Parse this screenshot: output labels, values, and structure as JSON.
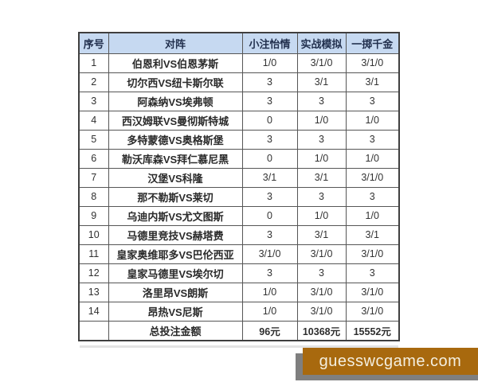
{
  "table": {
    "headers": [
      "序号",
      "对阵",
      "小注怡情",
      "实战模拟",
      "一掷千金"
    ],
    "rows": [
      [
        "1",
        "伯恩利VS伯恩茅斯",
        "1/0",
        "3/1/0",
        "3/1/0"
      ],
      [
        "2",
        "切尔西VS纽卡斯尔联",
        "3",
        "3/1",
        "3/1"
      ],
      [
        "3",
        "阿森纳VS埃弗顿",
        "3",
        "3",
        "3"
      ],
      [
        "4",
        "西汉姆联VS曼彻斯特城",
        "0",
        "1/0",
        "1/0"
      ],
      [
        "5",
        "多特蒙德VS奥格斯堡",
        "3",
        "3",
        "3"
      ],
      [
        "6",
        "勒沃库森VS拜仁慕尼黑",
        "0",
        "1/0",
        "1/0"
      ],
      [
        "7",
        "汉堡VS科隆",
        "3/1",
        "3/1",
        "3/1/0"
      ],
      [
        "8",
        "那不勒斯VS莱切",
        "3",
        "3",
        "3"
      ],
      [
        "9",
        "乌迪内斯VS尤文图斯",
        "0",
        "1/0",
        "1/0"
      ],
      [
        "10",
        "马德里竞技VS赫塔费",
        "3",
        "3/1",
        "3/1"
      ],
      [
        "11",
        "皇家奥维耶多VS巴伦西亚",
        "3/1/0",
        "3/1/0",
        "3/1/0"
      ],
      [
        "12",
        "皇家马德里VS埃尔切",
        "3",
        "3",
        "3"
      ],
      [
        "13",
        "洛里昂VS朗斯",
        "1/0",
        "3/1/0",
        "3/1/0"
      ],
      [
        "14",
        "昂热VS尼斯",
        "1/0",
        "3/1/0",
        "3/1/0"
      ]
    ],
    "total_row": [
      "",
      "总投注金额",
      "96元",
      "10368元",
      "15552元"
    ]
  },
  "watermark": {
    "text": "guesswcgame.com",
    "box_color": "#a8690e",
    "shadow_color": "#7f7f7f",
    "text_color": "#f4efe0"
  },
  "colors": {
    "header_bg": "#c6d9f1",
    "header_text": "#22304e",
    "grid_border": "#565656",
    "outer_border": "#3f3f3f",
    "cell_text": "#333333",
    "page_bg": "#ffffff"
  }
}
